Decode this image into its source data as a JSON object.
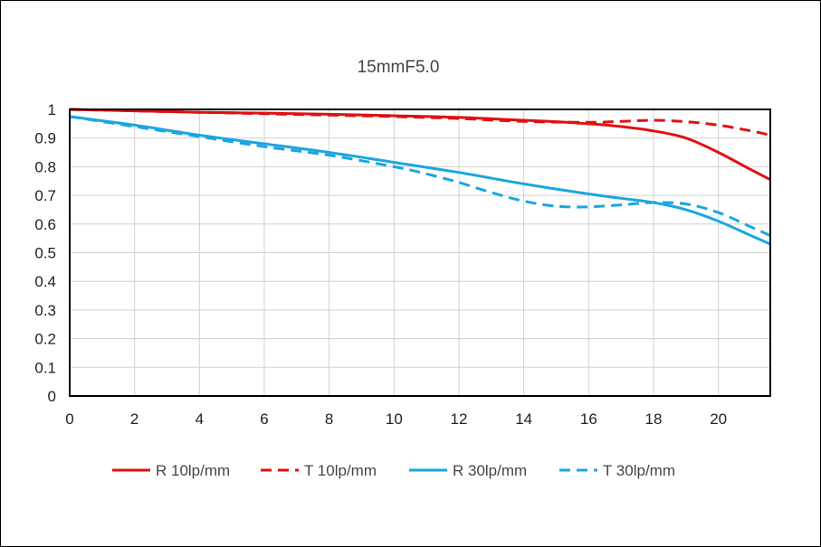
{
  "chart_data": {
    "type": "line",
    "title": "15mmF5.0",
    "xlabel": "",
    "ylabel": "",
    "xlim": [
      0,
      21.6
    ],
    "ylim": [
      0,
      1
    ],
    "x_ticks": [
      "0",
      "2",
      "4",
      "6",
      "8",
      "10",
      "12",
      "14",
      "16",
      "18",
      "20"
    ],
    "y_ticks": [
      "0",
      "0.1",
      "0.2",
      "0.3",
      "0.4",
      "0.5",
      "0.6",
      "0.7",
      "0.8",
      "0.9",
      "1"
    ],
    "grid": true,
    "legend_position": "bottom",
    "series": [
      {
        "name": "R 10lp/mm",
        "color": "#e01010",
        "dash": "solid",
        "x": [
          0,
          2,
          4,
          6,
          8,
          10,
          12,
          14,
          15,
          16,
          17,
          18,
          19,
          20,
          21,
          21.6
        ],
        "y": [
          1.0,
          0.995,
          0.99,
          0.987,
          0.983,
          0.978,
          0.972,
          0.962,
          0.957,
          0.95,
          0.94,
          0.925,
          0.9,
          0.85,
          0.79,
          0.755
        ]
      },
      {
        "name": "T 10lp/mm",
        "color": "#e01010",
        "dash": "dashed",
        "x": [
          0,
          2,
          4,
          6,
          8,
          10,
          12,
          14,
          16,
          17,
          18,
          19,
          20,
          21,
          21.6
        ],
        "y": [
          1.0,
          0.995,
          0.99,
          0.985,
          0.98,
          0.975,
          0.968,
          0.958,
          0.955,
          0.958,
          0.962,
          0.957,
          0.945,
          0.925,
          0.91
        ]
      },
      {
        "name": "R 30lp/mm",
        "color": "#1aa6e0",
        "dash": "solid",
        "x": [
          0,
          2,
          4,
          6,
          8,
          10,
          12,
          14,
          16,
          17,
          18,
          19,
          20,
          21,
          21.6
        ],
        "y": [
          0.975,
          0.945,
          0.91,
          0.88,
          0.85,
          0.815,
          0.78,
          0.74,
          0.705,
          0.69,
          0.675,
          0.65,
          0.61,
          0.56,
          0.53
        ]
      },
      {
        "name": "T 30lp/mm",
        "color": "#1aa6e0",
        "dash": "dashed",
        "x": [
          0,
          2,
          4,
          6,
          8,
          10,
          11,
          12,
          13,
          14,
          15,
          16,
          17,
          18,
          19,
          20,
          21,
          21.6
        ],
        "y": [
          0.975,
          0.94,
          0.905,
          0.87,
          0.84,
          0.8,
          0.775,
          0.745,
          0.71,
          0.68,
          0.662,
          0.66,
          0.667,
          0.675,
          0.67,
          0.64,
          0.59,
          0.56
        ]
      }
    ]
  }
}
